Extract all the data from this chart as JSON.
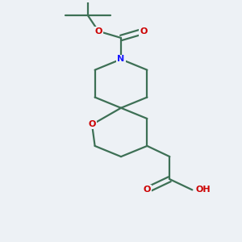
{
  "background_color": "#edf1f5",
  "bond_color": "#3d7055",
  "atom_colors": {
    "N": "#1a1aff",
    "O": "#cc0000",
    "H": "#333333",
    "C": "#3d7055"
  },
  "figsize": [
    3.0,
    3.0
  ],
  "dpi": 100,
  "lw": 1.6,
  "fontsize": 8.0
}
